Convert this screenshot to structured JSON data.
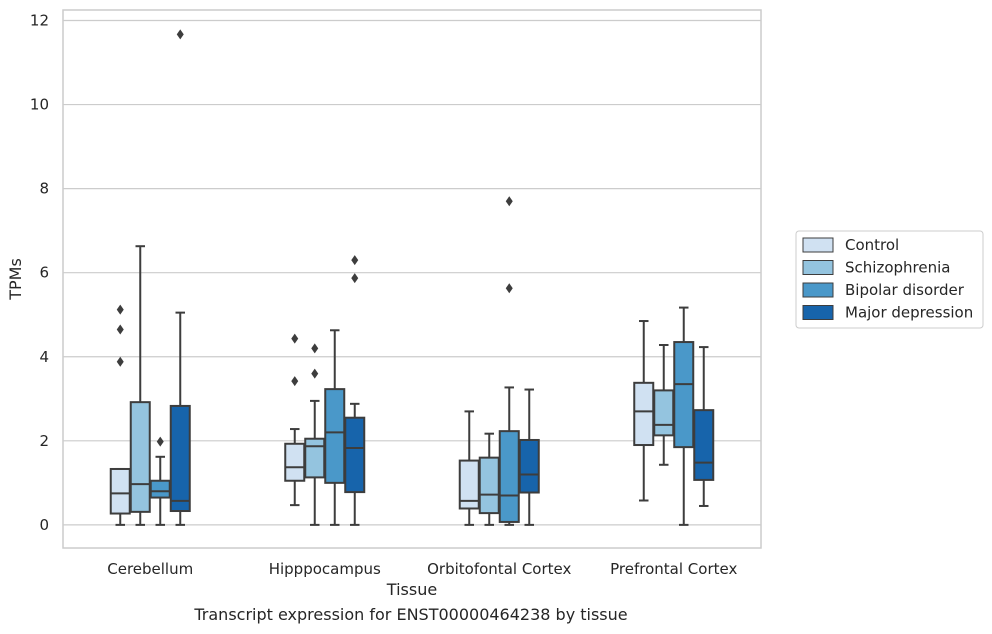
{
  "chart_data": {
    "type": "box",
    "xlabel": "Tissue",
    "ylabel": "TPMs",
    "caption": "Transcript expression for ENST00000464238 by tissue",
    "ylim": [
      -0.55,
      12.25
    ],
    "yticks": [
      0,
      2,
      4,
      6,
      8,
      10,
      12
    ],
    "grid": "horizontal",
    "legend_position": "right",
    "categories": [
      "Cerebellum",
      "Hipppocampus",
      "Orbitofontal Cortex",
      "Prefrontal Cortex"
    ],
    "series": [
      {
        "name": "Control",
        "color": "#d0e1f2",
        "boxes": [
          {
            "whisker_low": 0.0,
            "q1": 0.27,
            "median": 0.75,
            "q3": 1.33,
            "whisker_high": 1.33,
            "outliers": [
              3.88,
              4.65,
              5.12
            ]
          },
          {
            "whisker_low": 0.47,
            "q1": 1.05,
            "median": 1.37,
            "q3": 1.93,
            "whisker_high": 2.28,
            "outliers": [
              3.42,
              4.43
            ]
          },
          {
            "whisker_low": 0.0,
            "q1": 0.39,
            "median": 0.57,
            "q3": 1.53,
            "whisker_high": 2.7,
            "outliers": []
          },
          {
            "whisker_low": 0.58,
            "q1": 1.9,
            "median": 2.7,
            "q3": 3.38,
            "whisker_high": 4.85,
            "outliers": []
          }
        ]
      },
      {
        "name": "Schizophrenia",
        "color": "#94c4df",
        "boxes": [
          {
            "whisker_low": 0.0,
            "q1": 0.31,
            "median": 0.97,
            "q3": 2.92,
            "whisker_high": 6.63,
            "outliers": []
          },
          {
            "whisker_low": 0.0,
            "q1": 1.13,
            "median": 1.87,
            "q3": 2.05,
            "whisker_high": 2.95,
            "outliers": [
              3.6,
              4.2
            ]
          },
          {
            "whisker_low": 0.0,
            "q1": 0.28,
            "median": 0.72,
            "q3": 1.6,
            "whisker_high": 2.17,
            "outliers": []
          },
          {
            "whisker_low": 1.43,
            "q1": 2.13,
            "median": 2.38,
            "q3": 3.2,
            "whisker_high": 4.28,
            "outliers": []
          }
        ]
      },
      {
        "name": "Bipolar disorder",
        "color": "#4a98c9",
        "boxes": [
          {
            "whisker_low": 0.0,
            "q1": 0.65,
            "median": 0.8,
            "q3": 1.05,
            "whisker_high": 1.62,
            "outliers": [
              1.98
            ]
          },
          {
            "whisker_low": 0.0,
            "q1": 1.0,
            "median": 2.2,
            "q3": 3.23,
            "whisker_high": 4.63,
            "outliers": []
          },
          {
            "whisker_low": 0.0,
            "q1": 0.07,
            "median": 0.7,
            "q3": 2.23,
            "whisker_high": 3.27,
            "outliers": [
              5.63,
              7.7
            ]
          },
          {
            "whisker_low": 0.0,
            "q1": 1.85,
            "median": 3.35,
            "q3": 4.35,
            "whisker_high": 5.17,
            "outliers": []
          }
        ]
      },
      {
        "name": "Major depression",
        "color": "#1764ab",
        "boxes": [
          {
            "whisker_low": 0.0,
            "q1": 0.33,
            "median": 0.57,
            "q3": 2.83,
            "whisker_high": 5.05,
            "outliers": [
              11.67
            ]
          },
          {
            "whisker_low": 0.0,
            "q1": 0.78,
            "median": 1.83,
            "q3": 2.55,
            "whisker_high": 2.88,
            "outliers": [
              5.87,
              6.3
            ]
          },
          {
            "whisker_low": 0.0,
            "q1": 0.77,
            "median": 1.2,
            "q3": 2.02,
            "whisker_high": 3.22,
            "outliers": []
          },
          {
            "whisker_low": 0.45,
            "q1": 1.07,
            "median": 1.48,
            "q3": 2.73,
            "whisker_high": 4.23,
            "outliers": []
          }
        ]
      }
    ]
  }
}
